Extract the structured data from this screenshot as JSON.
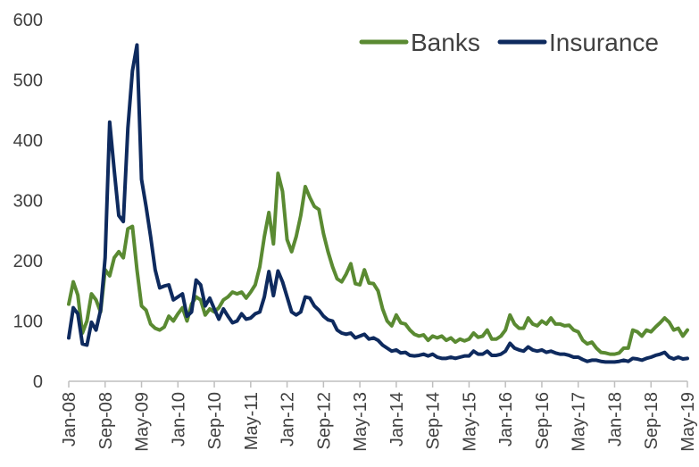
{
  "chart_data": {
    "type": "line",
    "title": "",
    "xlabel": "",
    "ylabel": "",
    "ylim": [
      0,
      600
    ],
    "y_ticks": [
      0,
      100,
      200,
      300,
      400,
      500,
      600
    ],
    "x_tick_labels": [
      "Jan-08",
      "Sep-08",
      "May-09",
      "Jan-10",
      "Sep-10",
      "May-11",
      "Jan-12",
      "Sep-12",
      "May-13",
      "Jan-14",
      "Sep-14",
      "May-15",
      "Jan-16",
      "Sep-16",
      "May-17",
      "Jan-18",
      "Sep-18",
      "May-19"
    ],
    "grid": false,
    "legend_position": "top-right",
    "series": [
      {
        "name": "Banks",
        "color": "#5a8a32",
        "points": [
          [
            "2008-01",
            128
          ],
          [
            "2008-02",
            165
          ],
          [
            "2008-03",
            143
          ],
          [
            "2008-04",
            80
          ],
          [
            "2008-05",
            100
          ],
          [
            "2008-06",
            145
          ],
          [
            "2008-07",
            135
          ],
          [
            "2008-08",
            115
          ],
          [
            "2008-09",
            185
          ],
          [
            "2008-10",
            175
          ],
          [
            "2008-11",
            205
          ],
          [
            "2008-12",
            215
          ],
          [
            "2009-01",
            205
          ],
          [
            "2009-02",
            253
          ],
          [
            "2009-03",
            257
          ],
          [
            "2009-04",
            185
          ],
          [
            "2009-05",
            125
          ],
          [
            "2009-06",
            118
          ],
          [
            "2009-07",
            95
          ],
          [
            "2009-08",
            88
          ],
          [
            "2009-09",
            85
          ],
          [
            "2009-10",
            90
          ],
          [
            "2009-11",
            108
          ],
          [
            "2009-12",
            100
          ],
          [
            "2010-01",
            112
          ],
          [
            "2010-02",
            122
          ],
          [
            "2010-03",
            100
          ],
          [
            "2010-04",
            128
          ],
          [
            "2010-05",
            140
          ],
          [
            "2010-06",
            135
          ],
          [
            "2010-07",
            110
          ],
          [
            "2010-08",
            120
          ],
          [
            "2010-09",
            115
          ],
          [
            "2010-10",
            122
          ],
          [
            "2010-11",
            135
          ],
          [
            "2010-12",
            140
          ],
          [
            "2011-01",
            148
          ],
          [
            "2011-02",
            145
          ],
          [
            "2011-03",
            148
          ],
          [
            "2011-04",
            138
          ],
          [
            "2011-05",
            148
          ],
          [
            "2011-06",
            160
          ],
          [
            "2011-07",
            190
          ],
          [
            "2011-08",
            240
          ],
          [
            "2011-09",
            280
          ],
          [
            "2011-10",
            228
          ],
          [
            "2011-11",
            345
          ],
          [
            "2011-12",
            315
          ],
          [
            "2012-01",
            235
          ],
          [
            "2012-02",
            215
          ],
          [
            "2012-03",
            240
          ],
          [
            "2012-04",
            275
          ],
          [
            "2012-05",
            323
          ],
          [
            "2012-06",
            305
          ],
          [
            "2012-07",
            290
          ],
          [
            "2012-08",
            285
          ],
          [
            "2012-09",
            245
          ],
          [
            "2012-10",
            215
          ],
          [
            "2012-11",
            190
          ],
          [
            "2012-12",
            170
          ],
          [
            "2013-01",
            165
          ],
          [
            "2013-02",
            178
          ],
          [
            "2013-03",
            195
          ],
          [
            "2013-04",
            162
          ],
          [
            "2013-05",
            160
          ],
          [
            "2013-06",
            185
          ],
          [
            "2013-07",
            163
          ],
          [
            "2013-08",
            162
          ],
          [
            "2013-09",
            150
          ],
          [
            "2013-10",
            120
          ],
          [
            "2013-11",
            100
          ],
          [
            "2013-12",
            92
          ],
          [
            "2014-01",
            110
          ],
          [
            "2014-02",
            97
          ],
          [
            "2014-03",
            95
          ],
          [
            "2014-04",
            85
          ],
          [
            "2014-05",
            78
          ],
          [
            "2014-06",
            75
          ],
          [
            "2014-07",
            77
          ],
          [
            "2014-08",
            68
          ],
          [
            "2014-09",
            75
          ],
          [
            "2014-10",
            72
          ],
          [
            "2014-11",
            75
          ],
          [
            "2014-12",
            68
          ],
          [
            "2015-01",
            72
          ],
          [
            "2015-02",
            65
          ],
          [
            "2015-03",
            70
          ],
          [
            "2015-04",
            67
          ],
          [
            "2015-05",
            70
          ],
          [
            "2015-06",
            80
          ],
          [
            "2015-07",
            73
          ],
          [
            "2015-08",
            75
          ],
          [
            "2015-09",
            85
          ],
          [
            "2015-10",
            70
          ],
          [
            "2015-11",
            70
          ],
          [
            "2015-12",
            75
          ],
          [
            "2016-01",
            85
          ],
          [
            "2016-02",
            110
          ],
          [
            "2016-03",
            95
          ],
          [
            "2016-04",
            88
          ],
          [
            "2016-05",
            88
          ],
          [
            "2016-06",
            105
          ],
          [
            "2016-07",
            95
          ],
          [
            "2016-08",
            92
          ],
          [
            "2016-09",
            100
          ],
          [
            "2016-10",
            95
          ],
          [
            "2016-11",
            105
          ],
          [
            "2016-12",
            95
          ],
          [
            "2017-01",
            95
          ],
          [
            "2017-02",
            92
          ],
          [
            "2017-03",
            93
          ],
          [
            "2017-04",
            85
          ],
          [
            "2017-05",
            82
          ],
          [
            "2017-06",
            68
          ],
          [
            "2017-07",
            62
          ],
          [
            "2017-08",
            65
          ],
          [
            "2017-09",
            55
          ],
          [
            "2017-10",
            48
          ],
          [
            "2017-11",
            47
          ],
          [
            "2017-12",
            45
          ],
          [
            "2018-01",
            45
          ],
          [
            "2018-02",
            47
          ],
          [
            "2018-03",
            55
          ],
          [
            "2018-04",
            55
          ],
          [
            "2018-05",
            85
          ],
          [
            "2018-06",
            82
          ],
          [
            "2018-07",
            75
          ],
          [
            "2018-08",
            85
          ],
          [
            "2018-09",
            82
          ],
          [
            "2018-10",
            90
          ],
          [
            "2018-11",
            97
          ],
          [
            "2018-12",
            105
          ],
          [
            "2019-01",
            98
          ],
          [
            "2019-02",
            85
          ],
          [
            "2019-03",
            88
          ],
          [
            "2019-04",
            75
          ],
          [
            "2019-05",
            85
          ]
        ]
      },
      {
        "name": "Insurance",
        "color": "#0e2a5e",
        "points": [
          [
            "2008-01",
            72
          ],
          [
            "2008-02",
            122
          ],
          [
            "2008-03",
            112
          ],
          [
            "2008-04",
            62
          ],
          [
            "2008-05",
            60
          ],
          [
            "2008-06",
            98
          ],
          [
            "2008-07",
            85
          ],
          [
            "2008-08",
            118
          ],
          [
            "2008-09",
            205
          ],
          [
            "2008-10",
            430
          ],
          [
            "2008-11",
            350
          ],
          [
            "2008-12",
            275
          ],
          [
            "2009-01",
            265
          ],
          [
            "2009-02",
            420
          ],
          [
            "2009-03",
            515
          ],
          [
            "2009-04",
            558
          ],
          [
            "2009-05",
            335
          ],
          [
            "2009-06",
            290
          ],
          [
            "2009-07",
            240
          ],
          [
            "2009-08",
            185
          ],
          [
            "2009-09",
            155
          ],
          [
            "2009-10",
            158
          ],
          [
            "2009-11",
            160
          ],
          [
            "2009-12",
            135
          ],
          [
            "2010-01",
            140
          ],
          [
            "2010-02",
            145
          ],
          [
            "2010-03",
            108
          ],
          [
            "2010-04",
            115
          ],
          [
            "2010-05",
            168
          ],
          [
            "2010-06",
            160
          ],
          [
            "2010-07",
            125
          ],
          [
            "2010-08",
            138
          ],
          [
            "2010-09",
            120
          ],
          [
            "2010-10",
            103
          ],
          [
            "2010-11",
            120
          ],
          [
            "2010-12",
            108
          ],
          [
            "2011-01",
            97
          ],
          [
            "2011-02",
            100
          ],
          [
            "2011-03",
            112
          ],
          [
            "2011-04",
            103
          ],
          [
            "2011-05",
            105
          ],
          [
            "2011-06",
            112
          ],
          [
            "2011-07",
            115
          ],
          [
            "2011-08",
            140
          ],
          [
            "2011-09",
            182
          ],
          [
            "2011-10",
            142
          ],
          [
            "2011-11",
            183
          ],
          [
            "2011-12",
            165
          ],
          [
            "2012-01",
            140
          ],
          [
            "2012-02",
            115
          ],
          [
            "2012-03",
            110
          ],
          [
            "2012-04",
            115
          ],
          [
            "2012-05",
            140
          ],
          [
            "2012-06",
            138
          ],
          [
            "2012-07",
            125
          ],
          [
            "2012-08",
            118
          ],
          [
            "2012-09",
            108
          ],
          [
            "2012-10",
            102
          ],
          [
            "2012-11",
            100
          ],
          [
            "2012-12",
            85
          ],
          [
            "2013-01",
            80
          ],
          [
            "2013-02",
            78
          ],
          [
            "2013-03",
            80
          ],
          [
            "2013-04",
            72
          ],
          [
            "2013-05",
            75
          ],
          [
            "2013-06",
            78
          ],
          [
            "2013-07",
            70
          ],
          [
            "2013-08",
            72
          ],
          [
            "2013-09",
            68
          ],
          [
            "2013-10",
            60
          ],
          [
            "2013-11",
            55
          ],
          [
            "2013-12",
            50
          ],
          [
            "2014-01",
            52
          ],
          [
            "2014-02",
            47
          ],
          [
            "2014-03",
            48
          ],
          [
            "2014-04",
            43
          ],
          [
            "2014-05",
            42
          ],
          [
            "2014-06",
            43
          ],
          [
            "2014-07",
            45
          ],
          [
            "2014-08",
            42
          ],
          [
            "2014-09",
            45
          ],
          [
            "2014-10",
            40
          ],
          [
            "2014-11",
            38
          ],
          [
            "2014-12",
            38
          ],
          [
            "2015-01",
            40
          ],
          [
            "2015-02",
            38
          ],
          [
            "2015-03",
            40
          ],
          [
            "2015-04",
            42
          ],
          [
            "2015-05",
            42
          ],
          [
            "2015-06",
            50
          ],
          [
            "2015-07",
            45
          ],
          [
            "2015-08",
            45
          ],
          [
            "2015-09",
            50
          ],
          [
            "2015-10",
            43
          ],
          [
            "2015-11",
            43
          ],
          [
            "2015-12",
            45
          ],
          [
            "2016-01",
            50
          ],
          [
            "2016-02",
            63
          ],
          [
            "2016-03",
            55
          ],
          [
            "2016-04",
            52
          ],
          [
            "2016-05",
            50
          ],
          [
            "2016-06",
            57
          ],
          [
            "2016-07",
            52
          ],
          [
            "2016-08",
            50
          ],
          [
            "2016-09",
            52
          ],
          [
            "2016-10",
            48
          ],
          [
            "2016-11",
            50
          ],
          [
            "2016-12",
            47
          ],
          [
            "2017-01",
            45
          ],
          [
            "2017-02",
            45
          ],
          [
            "2017-03",
            43
          ],
          [
            "2017-04",
            40
          ],
          [
            "2017-05",
            40
          ],
          [
            "2017-06",
            36
          ],
          [
            "2017-07",
            33
          ],
          [
            "2017-08",
            35
          ],
          [
            "2017-09",
            35
          ],
          [
            "2017-10",
            33
          ],
          [
            "2017-11",
            32
          ],
          [
            "2017-12",
            32
          ],
          [
            "2018-01",
            32
          ],
          [
            "2018-02",
            33
          ],
          [
            "2018-03",
            35
          ],
          [
            "2018-04",
            33
          ],
          [
            "2018-05",
            38
          ],
          [
            "2018-06",
            37
          ],
          [
            "2018-07",
            35
          ],
          [
            "2018-08",
            38
          ],
          [
            "2018-09",
            40
          ],
          [
            "2018-10",
            43
          ],
          [
            "2018-11",
            45
          ],
          [
            "2018-12",
            48
          ],
          [
            "2019-01",
            40
          ],
          [
            "2019-02",
            37
          ],
          [
            "2019-03",
            40
          ],
          [
            "2019-04",
            37
          ],
          [
            "2019-05",
            38
          ]
        ]
      }
    ]
  }
}
